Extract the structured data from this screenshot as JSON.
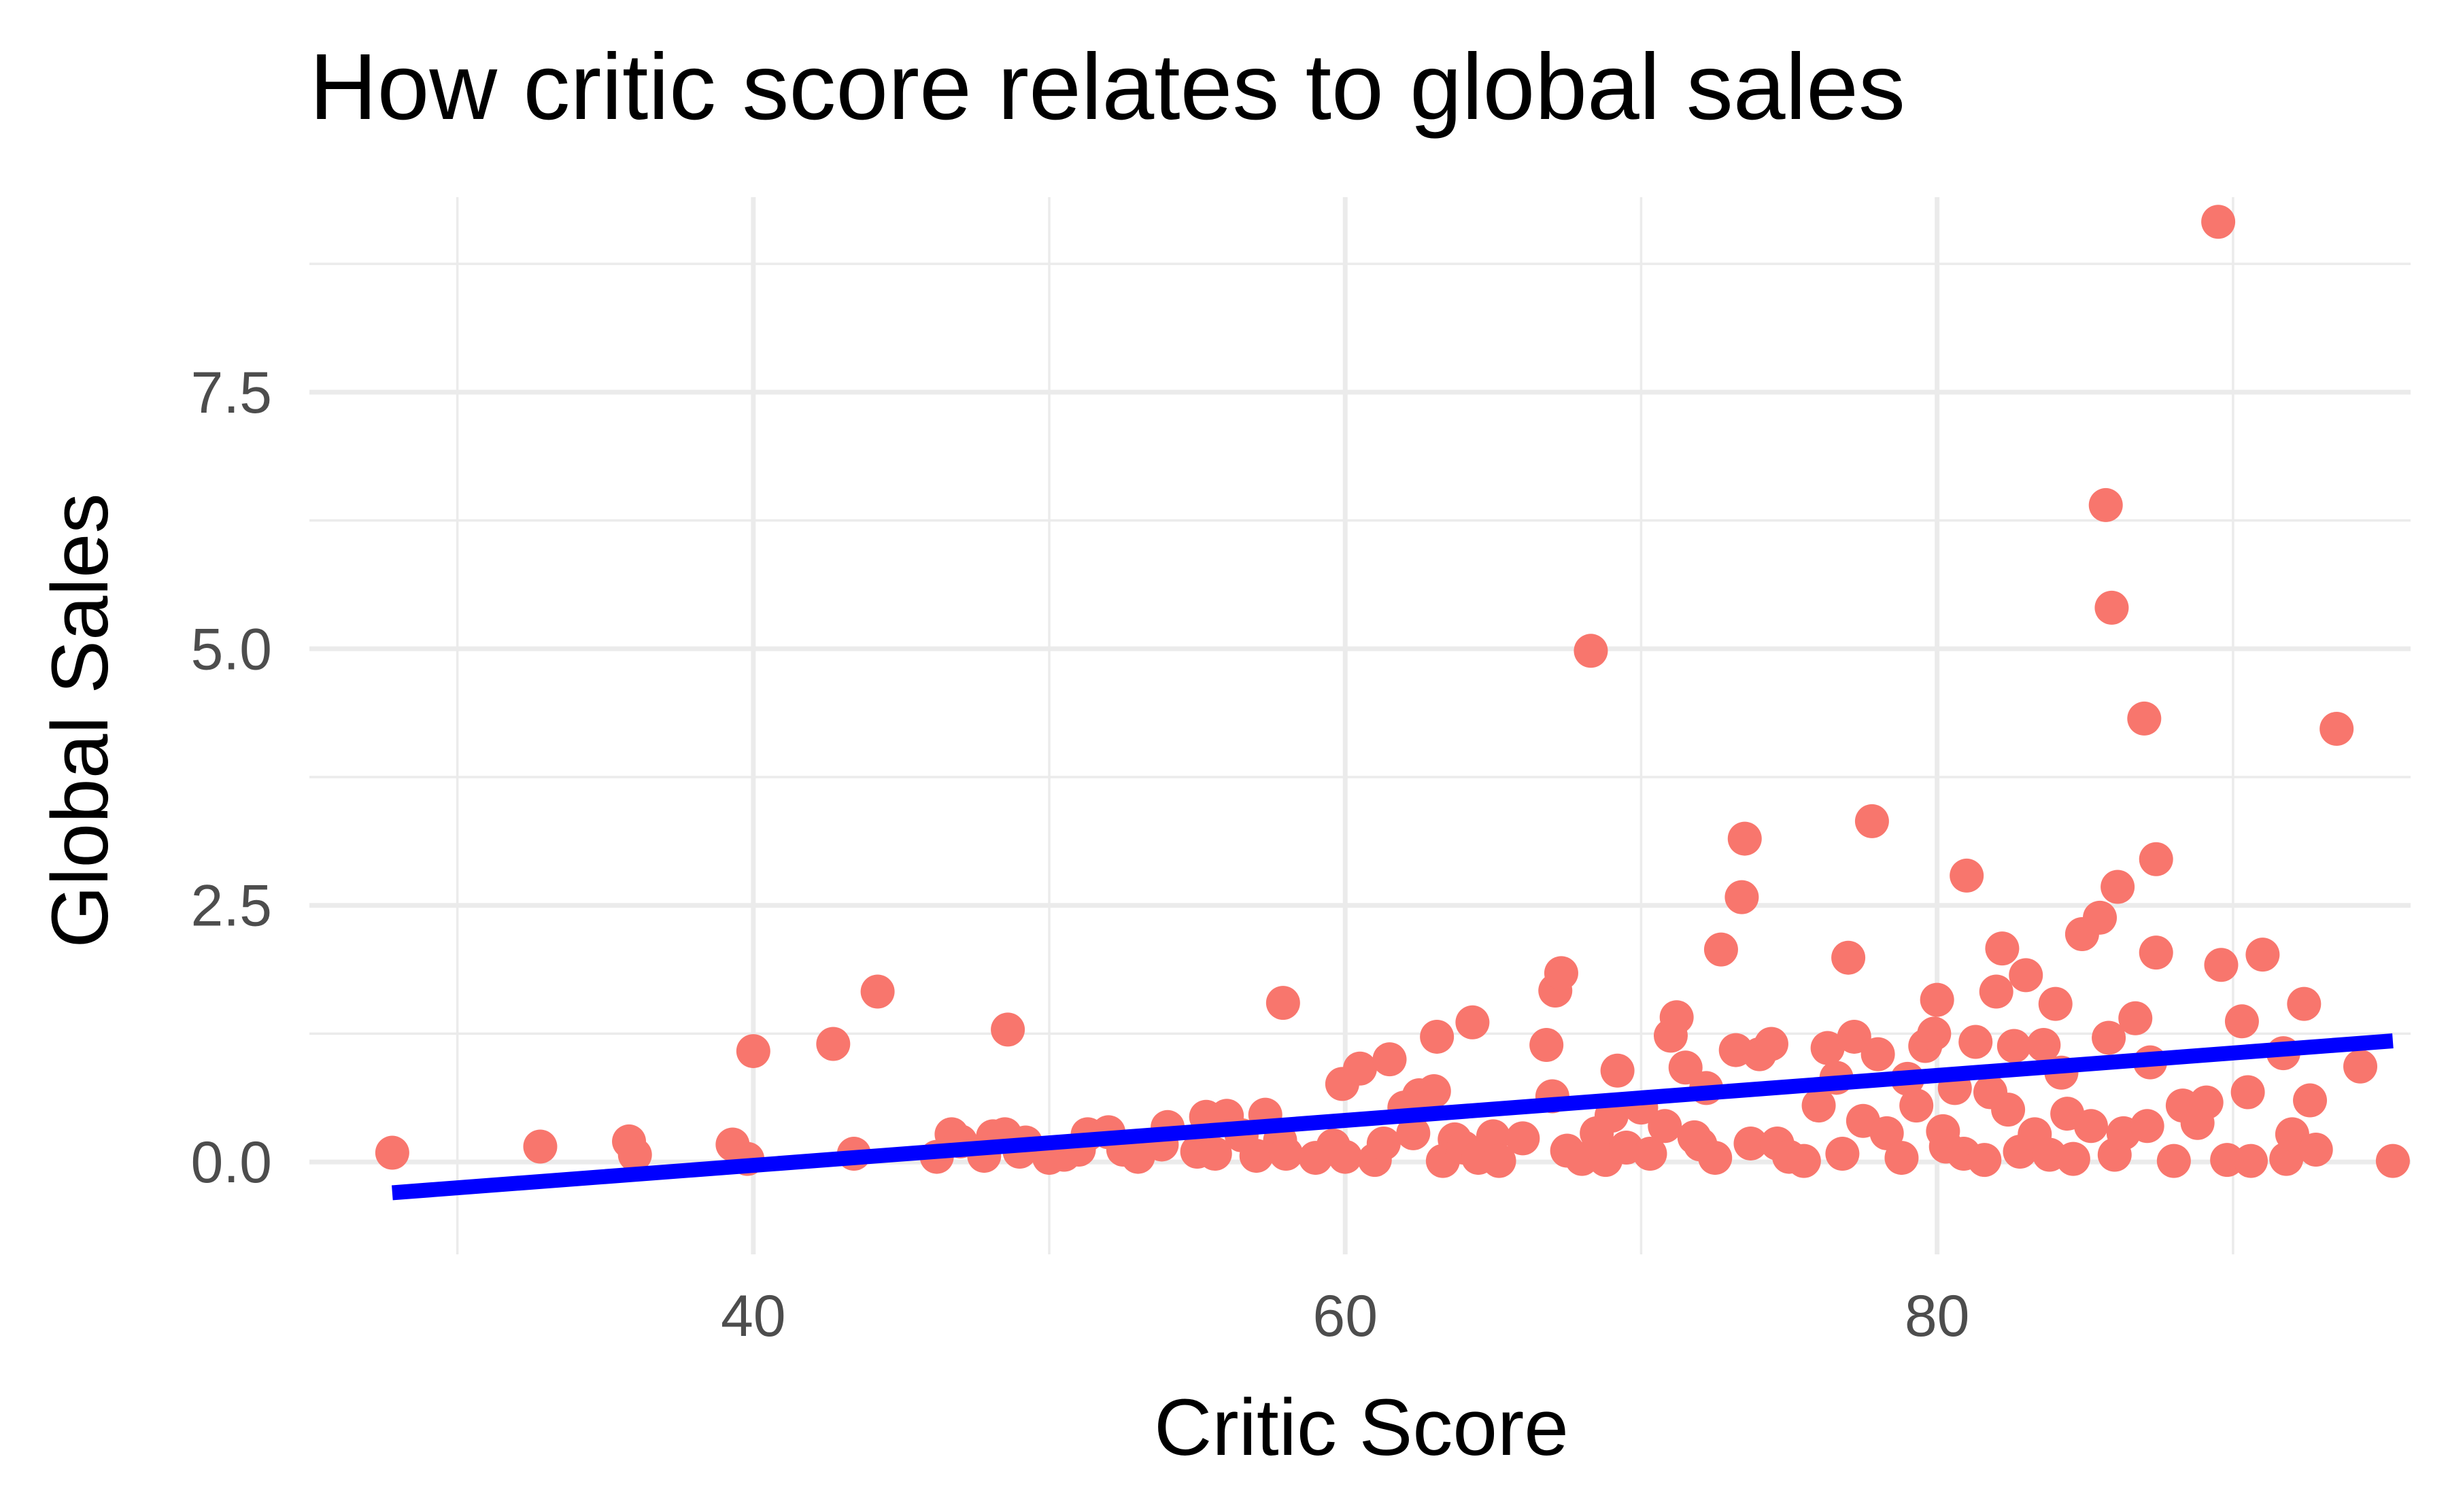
{
  "chart_data": {
    "type": "scatter",
    "title": "How critic score relates to global sales",
    "xlabel": "Critic Score",
    "ylabel": "Global Sales",
    "xlim": [
      25,
      96
    ],
    "ylim": [
      -0.9,
      9.4
    ],
    "x_ticks": [
      40,
      60,
      80
    ],
    "x_tick_labels": [
      "40",
      "60",
      "80"
    ],
    "y_ticks": [
      0,
      2.5,
      5,
      7.5
    ],
    "y_tick_labels": [
      "0.0",
      "2.5",
      "5.0",
      "7.5"
    ],
    "grid": true,
    "legend": "none",
    "series": [
      {
        "point_color": "#F8766D",
        "points": [
          [
            27.8,
            0.09
          ],
          [
            32.8,
            0.15
          ],
          [
            35.8,
            0.2
          ],
          [
            36.0,
            0.07
          ],
          [
            39.3,
            0.17
          ],
          [
            39.8,
            0.03
          ],
          [
            40.0,
            1.08
          ],
          [
            42.7,
            1.15
          ],
          [
            43.4,
            0.08
          ],
          [
            44.2,
            1.66
          ],
          [
            46.2,
            0.05
          ],
          [
            46.7,
            0.27
          ],
          [
            47.0,
            0.2
          ],
          [
            47.8,
            0.06
          ],
          [
            48.1,
            0.25
          ],
          [
            48.5,
            0.27
          ],
          [
            48.6,
            1.29
          ],
          [
            49.0,
            0.1
          ],
          [
            49.2,
            0.19
          ],
          [
            50.0,
            0.04
          ],
          [
            50.5,
            0.07
          ],
          [
            51.0,
            0.12
          ],
          [
            51.3,
            0.27
          ],
          [
            52.0,
            0.29
          ],
          [
            52.5,
            0.12
          ],
          [
            53.0,
            0.05
          ],
          [
            53.8,
            0.17
          ],
          [
            54.0,
            0.34
          ],
          [
            55.0,
            0.1
          ],
          [
            55.3,
            0.44
          ],
          [
            55.6,
            0.08
          ],
          [
            56.0,
            0.45
          ],
          [
            56.5,
            0.26
          ],
          [
            57.0,
            0.06
          ],
          [
            57.3,
            0.46
          ],
          [
            57.8,
            0.21
          ],
          [
            58.0,
            0.08
          ],
          [
            57.9,
            1.55
          ],
          [
            59.0,
            0.04
          ],
          [
            59.6,
            0.16
          ],
          [
            59.9,
            0.76
          ],
          [
            60.0,
            0.05
          ],
          [
            60.5,
            0.91
          ],
          [
            61.0,
            0.02
          ],
          [
            61.3,
            0.18
          ],
          [
            61.5,
            1.0
          ],
          [
            62.0,
            0.53
          ],
          [
            62.3,
            0.28
          ],
          [
            62.5,
            0.65
          ],
          [
            63.0,
            0.69
          ],
          [
            63.1,
            1.22
          ],
          [
            63.3,
            0.01
          ],
          [
            63.7,
            0.22
          ],
          [
            64.0,
            0.14
          ],
          [
            64.3,
            1.36
          ],
          [
            64.5,
            0.04
          ],
          [
            65.0,
            0.25
          ],
          [
            65.2,
            0.01
          ],
          [
            66.0,
            0.23
          ],
          [
            66.8,
            1.14
          ],
          [
            67.0,
            0.64
          ],
          [
            67.1,
            1.67
          ],
          [
            67.3,
            1.84
          ],
          [
            67.5,
            0.11
          ],
          [
            68.0,
            0.03
          ],
          [
            68.3,
            4.98
          ],
          [
            68.5,
            0.28
          ],
          [
            68.8,
            0.02
          ],
          [
            69.0,
            0.45
          ],
          [
            69.2,
            0.89
          ],
          [
            69.5,
            0.14
          ],
          [
            70.0,
            0.53
          ],
          [
            70.3,
            0.08
          ],
          [
            70.8,
            0.35
          ],
          [
            71.0,
            1.23
          ],
          [
            71.2,
            1.41
          ],
          [
            71.5,
            0.92
          ],
          [
            71.8,
            0.24
          ],
          [
            72.0,
            0.17
          ],
          [
            72.2,
            0.72
          ],
          [
            72.5,
            0.04
          ],
          [
            72.7,
            2.07
          ],
          [
            73.2,
            1.09
          ],
          [
            73.4,
            2.58
          ],
          [
            73.5,
            3.15
          ],
          [
            73.7,
            0.18
          ],
          [
            74.0,
            1.05
          ],
          [
            74.4,
            1.15
          ],
          [
            74.6,
            0.18
          ],
          [
            75.0,
            0.05
          ],
          [
            75.5,
            0.01
          ],
          [
            76.0,
            0.55
          ],
          [
            76.3,
            1.11
          ],
          [
            76.6,
            0.82
          ],
          [
            76.8,
            0.08
          ],
          [
            77.0,
            1.99
          ],
          [
            77.2,
            1.22
          ],
          [
            77.5,
            0.4
          ],
          [
            77.8,
            3.32
          ],
          [
            78.0,
            1.05
          ],
          [
            78.3,
            0.28
          ],
          [
            78.8,
            0.04
          ],
          [
            79.0,
            0.81
          ],
          [
            79.3,
            0.55
          ],
          [
            79.6,
            1.13
          ],
          [
            79.9,
            1.25
          ],
          [
            80.0,
            1.58
          ],
          [
            80.2,
            0.3
          ],
          [
            80.3,
            0.15
          ],
          [
            80.6,
            0.72
          ],
          [
            80.9,
            0.08
          ],
          [
            81.0,
            2.79
          ],
          [
            81.3,
            1.17
          ],
          [
            81.6,
            0.02
          ],
          [
            81.8,
            0.68
          ],
          [
            82.0,
            1.66
          ],
          [
            82.2,
            2.08
          ],
          [
            82.4,
            0.51
          ],
          [
            82.6,
            1.13
          ],
          [
            82.8,
            0.1
          ],
          [
            83.0,
            1.82
          ],
          [
            83.3,
            0.27
          ],
          [
            83.6,
            1.14
          ],
          [
            83.8,
            0.07
          ],
          [
            84.0,
            1.54
          ],
          [
            84.2,
            0.87
          ],
          [
            84.4,
            0.47
          ],
          [
            84.6,
            0.03
          ],
          [
            84.9,
            2.22
          ],
          [
            85.2,
            0.35
          ],
          [
            85.5,
            2.38
          ],
          [
            85.7,
            6.4
          ],
          [
            85.8,
            1.21
          ],
          [
            85.9,
            5.4
          ],
          [
            86.0,
            0.07
          ],
          [
            86.1,
            2.68
          ],
          [
            86.3,
            0.28
          ],
          [
            86.7,
            1.4
          ],
          [
            87.0,
            4.32
          ],
          [
            87.1,
            0.35
          ],
          [
            87.2,
            0.97
          ],
          [
            87.4,
            2.04
          ],
          [
            87.4,
            2.95
          ],
          [
            88.0,
            0.01
          ],
          [
            88.3,
            0.55
          ],
          [
            88.8,
            0.38
          ],
          [
            89.1,
            0.58
          ],
          [
            89.5,
            9.16
          ],
          [
            89.6,
            1.92
          ],
          [
            89.8,
            0.02
          ],
          [
            90.3,
            1.37
          ],
          [
            90.5,
            0.68
          ],
          [
            90.6,
            0.01
          ],
          [
            91.0,
            2.02
          ],
          [
            91.7,
            1.06
          ],
          [
            91.8,
            0.03
          ],
          [
            92.0,
            0.27
          ],
          [
            92.4,
            1.54
          ],
          [
            92.6,
            0.6
          ],
          [
            92.8,
            0.12
          ],
          [
            93.5,
            4.22
          ],
          [
            94.3,
            0.93
          ],
          [
            95.4,
            0.01
          ]
        ]
      }
    ],
    "trendline": {
      "type": "linear",
      "color": "#0000FF",
      "x": [
        27.8,
        95.4
      ],
      "y": [
        -0.3,
        1.18
      ]
    }
  }
}
